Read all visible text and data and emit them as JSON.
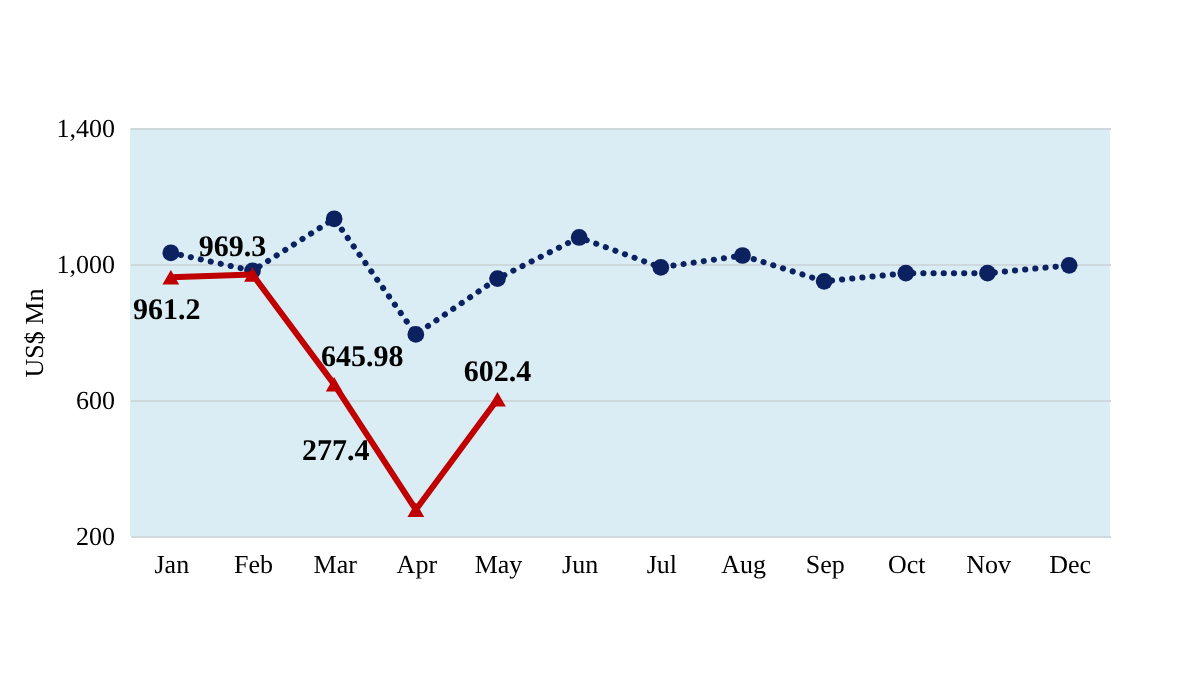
{
  "chart_data": {
    "type": "line",
    "ylabel": "US$ Mn",
    "categories": [
      "Jan",
      "Feb",
      "Mar",
      "Apr",
      "May",
      "Jun",
      "Jul",
      "Aug",
      "Sep",
      "Oct",
      "Nov",
      "Dec"
    ],
    "series": [
      {
        "color": "#0b2160",
        "marker": "circle",
        "line_style": "dotted",
        "values": [
          1033,
          980,
          1133,
          793,
          957,
          1078,
          990,
          1025,
          949,
          973,
          973,
          996
        ]
      },
      {
        "color": "#c00000",
        "marker": "triangle",
        "line_style": "solid",
        "values": [
          961.2,
          969.3,
          645.98,
          277.4,
          602.4,
          null,
          null,
          null,
          null,
          null,
          null,
          null
        ],
        "value_labels": [
          "961.2",
          "969.3",
          "645.98",
          "277.4",
          "602.4",
          null,
          null,
          null,
          null,
          null,
          null,
          null
        ]
      }
    ],
    "ylim": [
      200,
      1400
    ],
    "yticks": [
      200,
      600,
      {
        "value": 1000,
        "label": "1,000"
      },
      {
        "value": 1400,
        "label": "1,400"
      }
    ],
    "grid": "y"
  }
}
